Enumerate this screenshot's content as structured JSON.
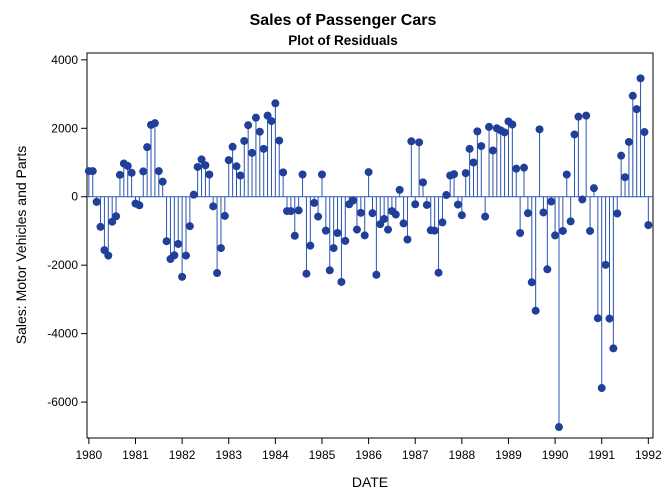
{
  "chart_data": {
    "type": "stem",
    "title": "Sales of Passenger Cars",
    "subtitle": "Plot of Residuals",
    "xlabel": "DATE",
    "ylabel": "Sales: Motor Vehicles and Parts",
    "xlim": [
      1979.96,
      1992.1
    ],
    "ylim": [
      -7050,
      4200
    ],
    "x_ticks": [
      1980,
      1981,
      1982,
      1983,
      1984,
      1985,
      1986,
      1987,
      1988,
      1989,
      1990,
      1991,
      1992
    ],
    "x_tick_labels": [
      "1980",
      "1981",
      "1982",
      "1983",
      "1984",
      "1985",
      "1986",
      "1987",
      "1988",
      "1989",
      "1990",
      "1991",
      "1992"
    ],
    "y_ticks": [
      -6000,
      -4000,
      -2000,
      0,
      2000,
      4000
    ],
    "y_tick_labels": [
      "-6000",
      "-4000",
      "-2000",
      "0",
      "2000",
      "4000"
    ],
    "baseline": 0,
    "grid": false,
    "colors": {
      "marker": "#1f3f99",
      "stem": "#2b54b0",
      "frame": "#000000"
    },
    "x_start": 1980.0,
    "x_step_months": 1,
    "values": [
      750,
      750,
      -150,
      -880,
      -1560,
      -1720,
      -730,
      -570,
      640,
      970,
      900,
      700,
      -200,
      -250,
      740,
      1450,
      2100,
      2150,
      750,
      440,
      -1300,
      -1820,
      -1710,
      -1380,
      -2340,
      -1720,
      -860,
      60,
      870,
      1090,
      920,
      650,
      -280,
      -2230,
      -1500,
      -560,
      1070,
      1460,
      890,
      620,
      1630,
      2090,
      1280,
      2310,
      1900,
      1400,
      2370,
      2210,
      2730,
      1640,
      710,
      -420,
      -420,
      -1140,
      -400,
      650,
      -2250,
      -1430,
      -180,
      -580,
      650,
      -990,
      -2150,
      -1500,
      -1060,
      -2490,
      -1290,
      -220,
      -110,
      -960,
      -470,
      -1130,
      720,
      -480,
      -2280,
      -800,
      -650,
      -960,
      -420,
      -520,
      200,
      -780,
      -1250,
      1620,
      -220,
      1590,
      420,
      -240,
      -980,
      -990,
      -2220,
      -750,
      50,
      620,
      660,
      -230,
      -540,
      690,
      1400,
      1000,
      1910,
      1480,
      -580,
      2040,
      1350,
      2000,
      1940,
      1880,
      2200,
      2110,
      820,
      -1060,
      850,
      -480,
      -2500,
      -3330,
      1970,
      -460,
      -2120,
      -140,
      -1130,
      -6730,
      -1000,
      650,
      -720,
      1820,
      2340,
      -80,
      2370,
      -1000,
      250,
      -3550,
      -5590,
      -1990,
      -3560,
      -4430,
      -490,
      1200,
      570,
      1600,
      2950,
      2560,
      3460,
      1890,
      -830
    ]
  }
}
